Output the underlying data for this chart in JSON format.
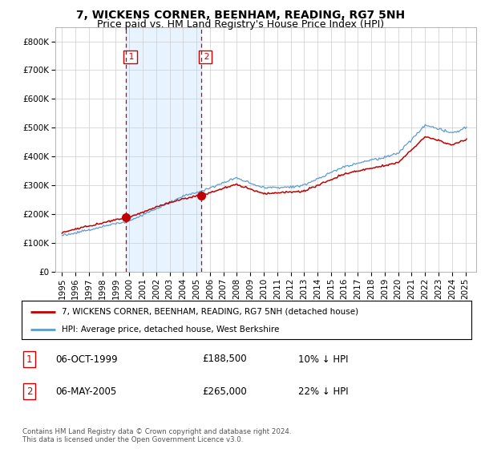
{
  "title": "7, WICKENS CORNER, BEENHAM, READING, RG7 5NH",
  "subtitle": "Price paid vs. HM Land Registry's House Price Index (HPI)",
  "legend_line1": "7, WICKENS CORNER, BEENHAM, READING, RG7 5NH (detached house)",
  "legend_line2": "HPI: Average price, detached house, West Berkshire",
  "footer": "Contains HM Land Registry data © Crown copyright and database right 2024.\nThis data is licensed under the Open Government Licence v3.0.",
  "sale1_label": "1",
  "sale1_date": "06-OCT-1999",
  "sale1_price": "£188,500",
  "sale1_hpi": "10% ↓ HPI",
  "sale1_x": 1999.76,
  "sale1_y": 188500,
  "sale2_label": "2",
  "sale2_date": "06-MAY-2005",
  "sale2_price": "£265,000",
  "sale2_hpi": "22% ↓ HPI",
  "sale2_x": 2005.35,
  "sale2_y": 265000,
  "hpi_color": "#5b9bd5",
  "hpi_fill_color": "#ddeeff",
  "price_color": "#c00000",
  "vline_color": "#cc0000",
  "marker_color": "#c00000",
  "shade_color": "#ddeeff",
  "ylim_low": 0,
  "ylim_high": 850000,
  "xlim_low": 1994.5,
  "xlim_high": 2025.8,
  "yticks": [
    0,
    100000,
    200000,
    300000,
    400000,
    500000,
    600000,
    700000,
    800000
  ],
  "ytick_labels": [
    "£0",
    "£100K",
    "£200K",
    "£300K",
    "£400K",
    "£500K",
    "£600K",
    "£700K",
    "£800K"
  ],
  "title_fontsize": 10,
  "subtitle_fontsize": 9,
  "tick_fontsize": 7.5
}
